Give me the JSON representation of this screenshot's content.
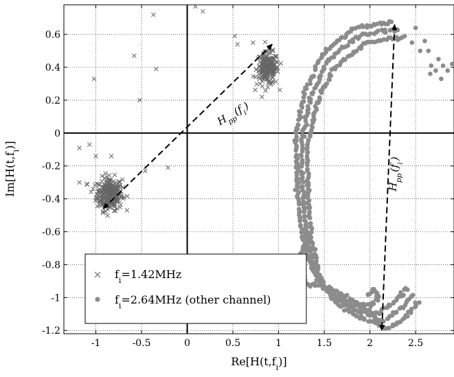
{
  "chart_data": {
    "type": "scatter",
    "xlabel": "Re[H(t,f_i)]",
    "ylabel": "Im[H(t,f_i)]",
    "xlim": [
      -1.35,
      2.92
    ],
    "ylim": [
      -1.22,
      0.78
    ],
    "x_ticks": [
      -1,
      -0.5,
      0,
      0.5,
      1,
      1.5,
      2,
      2.5
    ],
    "y_ticks": [
      0.6,
      0.4,
      0.2,
      0,
      -0.2,
      -0.4,
      -0.6,
      -0.8,
      -1,
      -1.2
    ],
    "x_tick_labels": [
      "-1",
      "-0.5",
      "0",
      "0.5",
      "1",
      "1.5",
      "2",
      "2.5"
    ],
    "y_tick_labels": [
      "0.6",
      "0.4",
      "0.2",
      "0",
      "-0.2",
      "-0.4",
      "-0.6",
      "-0.8",
      "-1",
      "-1.2"
    ],
    "grid": "dotted",
    "legend_position": "bottom-left",
    "series": [
      {
        "name": "f_i=1.42MHz",
        "marker": "x",
        "color": "#666666",
        "clusters": [
          {
            "center": [
              -0.85,
              -0.37
            ],
            "spread": [
              0.07,
              0.05
            ],
            "count": 260
          },
          {
            "center": [
              0.88,
              0.39
            ],
            "spread": [
              0.06,
              0.05
            ],
            "count": 200
          }
        ],
        "points": [
          [
            0.09,
            0.77
          ],
          [
            0.17,
            0.74
          ],
          [
            -0.37,
            0.72
          ],
          [
            0.52,
            0.59
          ],
          [
            0.55,
            0.54
          ],
          [
            0.72,
            0.55
          ],
          [
            -0.58,
            0.47
          ],
          [
            -0.34,
            0.39
          ],
          [
            -1.02,
            0.33
          ],
          [
            -0.52,
            0.2
          ],
          [
            -1.18,
            -0.09
          ],
          [
            -1.07,
            -0.07
          ],
          [
            -1.0,
            -0.14
          ],
          [
            -0.83,
            -0.14
          ],
          [
            -0.46,
            -0.23
          ],
          [
            -0.21,
            -0.21
          ],
          [
            -1.18,
            -0.3
          ],
          [
            -1.1,
            -0.31
          ],
          [
            -1.03,
            -0.34
          ]
        ]
      },
      {
        "name": "f_i=2.64MHz (other channel)",
        "marker": "o",
        "color": "#8c8c8c",
        "loops": [
          {
            "offset": [
              0,
              0
            ],
            "path": [
              [
                2.3,
                0.63
              ],
              [
                1.9,
                0.6
              ],
              [
                1.55,
                0.45
              ],
              [
                1.35,
                0.22
              ],
              [
                1.25,
                -0.05
              ],
              [
                1.26,
                -0.35
              ],
              [
                1.3,
                -0.6
              ],
              [
                1.38,
                -0.8
              ],
              [
                1.45,
                -0.9
              ],
              [
                1.55,
                -0.97
              ],
              [
                1.7,
                -1.03
              ],
              [
                1.85,
                -1.08
              ],
              [
                2.0,
                -1.1
              ],
              [
                2.12,
                -1.15
              ],
              [
                2.2,
                -1.12
              ],
              [
                2.3,
                -1.08
              ],
              [
                2.4,
                -1.03
              ],
              [
                2.48,
                -0.97
              ]
            ]
          },
          {
            "offset": [
              0.06,
              -0.05
            ],
            "path": [
              [
                2.3,
                0.63
              ],
              [
                1.9,
                0.6
              ],
              [
                1.55,
                0.45
              ],
              [
                1.35,
                0.22
              ],
              [
                1.25,
                -0.05
              ],
              [
                1.26,
                -0.35
              ],
              [
                1.3,
                -0.6
              ],
              [
                1.38,
                -0.8
              ],
              [
                1.45,
                -0.9
              ],
              [
                1.55,
                -0.97
              ],
              [
                1.7,
                -1.03
              ],
              [
                1.85,
                -1.08
              ],
              [
                2.0,
                -1.1
              ],
              [
                2.12,
                -1.15
              ],
              [
                2.2,
                -1.12
              ],
              [
                2.3,
                -1.08
              ],
              [
                2.4,
                -1.03
              ],
              [
                2.48,
                -0.97
              ]
            ]
          },
          {
            "offset": [
              -0.06,
              0.04
            ],
            "path": [
              [
                2.3,
                0.63
              ],
              [
                1.9,
                0.6
              ],
              [
                1.55,
                0.45
              ],
              [
                1.35,
                0.22
              ],
              [
                1.25,
                -0.05
              ],
              [
                1.26,
                -0.35
              ],
              [
                1.3,
                -0.6
              ],
              [
                1.38,
                -0.8
              ],
              [
                1.45,
                -0.9
              ],
              [
                1.55,
                -0.97
              ],
              [
                1.7,
                -1.03
              ],
              [
                1.85,
                -1.08
              ],
              [
                2.0,
                -1.1
              ],
              [
                2.12,
                -1.15
              ],
              [
                2.2,
                -1.12
              ],
              [
                2.3,
                -1.08
              ],
              [
                2.4,
                -1.03
              ],
              [
                2.48,
                -0.97
              ]
            ]
          },
          {
            "offset": [
              0,
              0
            ],
            "path": [
              [
                1.3,
                -0.6
              ],
              [
                1.25,
                -0.75
              ],
              [
                1.3,
                -0.92
              ],
              [
                1.45,
                -0.93
              ],
              [
                1.6,
                -0.95
              ],
              [
                1.75,
                -1.0
              ],
              [
                1.85,
                -1.03
              ],
              [
                2.0,
                -1.05
              ],
              [
                2.1,
                -1.0
              ],
              [
                2.05,
                -0.95
              ],
              [
                1.95,
                -1.0
              ]
            ]
          }
        ],
        "points": [
          [
            2.3,
            0.63
          ],
          [
            2.38,
            0.59
          ],
          [
            2.46,
            0.55
          ],
          [
            2.5,
            0.64
          ],
          [
            2.55,
            0.5
          ],
          [
            2.6,
            0.56
          ],
          [
            2.64,
            0.5
          ],
          [
            2.67,
            0.41
          ],
          [
            2.72,
            0.38
          ],
          [
            2.75,
            0.45
          ],
          [
            2.8,
            0.41
          ],
          [
            2.85,
            0.38
          ],
          [
            2.9,
            0.42
          ],
          [
            2.78,
            0.33
          ],
          [
            2.66,
            0.36
          ]
        ]
      }
    ],
    "annotations": [
      {
        "text": "H_pp(f_i)",
        "arrow_from": [
          -0.92,
          -0.46
        ],
        "arrow_to": [
          0.93,
          0.54
        ],
        "label_at": [
          0.52,
          0.1
        ],
        "rotation": -31
      },
      {
        "text": "H_pp(f_i)",
        "arrow_from": [
          2.27,
          0.66
        ],
        "arrow_to": [
          2.13,
          -1.2
        ],
        "label_at": [
          2.3,
          -0.25
        ],
        "rotation": -86
      }
    ],
    "legend": [
      {
        "label": "f_i=1.42MHz",
        "marker": "x"
      },
      {
        "label": "f_i=2.64MHz (other channel)",
        "marker": "o"
      }
    ]
  }
}
